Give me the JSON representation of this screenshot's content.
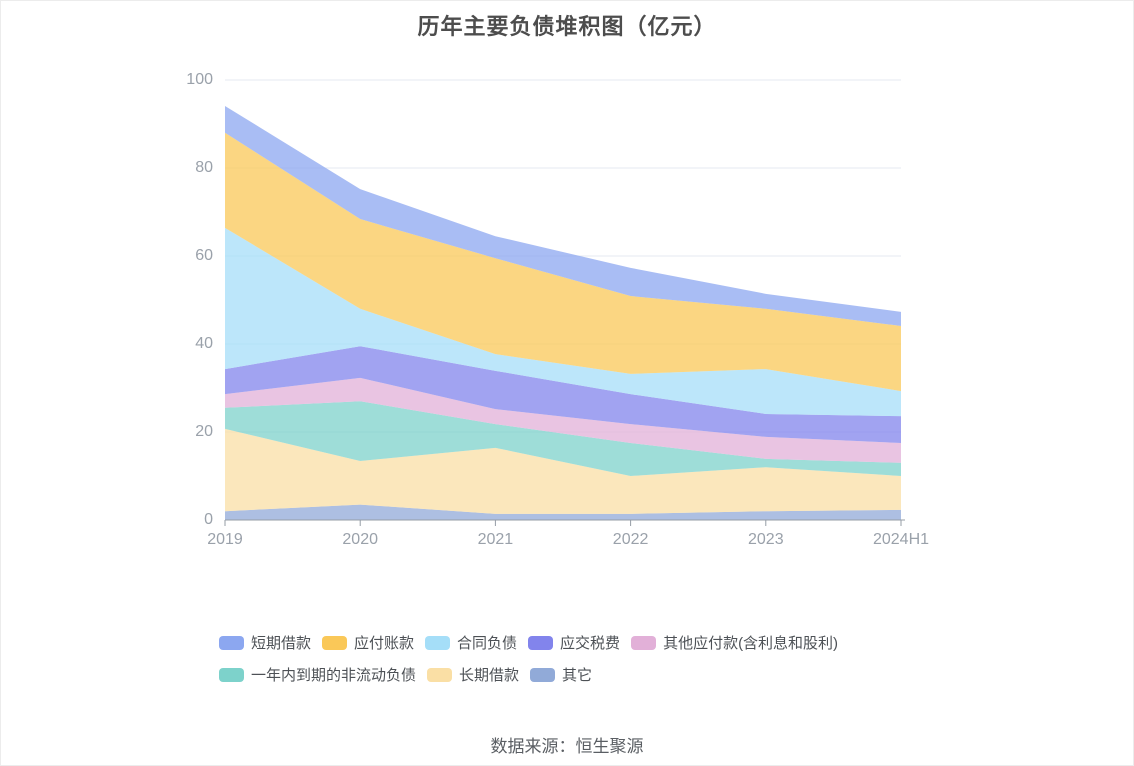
{
  "title": "历年主要负债堆积图（亿元）",
  "source": "数据来源：恒生聚源",
  "palette": {
    "grid_line": "#e4eaf2",
    "axis_line": "#959ca6",
    "axis_label": "#9aa1aa",
    "title_color": "#4d4d4d",
    "legend_text": "#4d5156",
    "background": "#ffffff"
  },
  "chart_data": {
    "type": "area",
    "stacked": true,
    "title": "历年主要负债堆积图（亿元）",
    "categories": [
      "2019",
      "2020",
      "2021",
      "2022",
      "2023",
      "2024H1"
    ],
    "ylim": [
      0,
      100
    ],
    "yticks": [
      0,
      20,
      40,
      60,
      80,
      100
    ],
    "grid": true,
    "legend_position": "bottom",
    "area_opacity": 0.75,
    "series": [
      {
        "key": "others",
        "name": "其它",
        "color": "#91aad8",
        "values": [
          2.0,
          3.5,
          1.4,
          1.4,
          2.0,
          2.3
        ]
      },
      {
        "key": "long-term-borrowings",
        "name": "长期借款",
        "color": "#fadfa5",
        "values": [
          18.7,
          9.9,
          15.0,
          8.6,
          10.0,
          7.7
        ]
      },
      {
        "key": "non-current-liabilities-due-within-one-year",
        "name": "一年内到期的非流动负债",
        "color": "#7dd2cb",
        "values": [
          4.8,
          13.6,
          5.4,
          7.5,
          1.9,
          3.0
        ]
      },
      {
        "key": "other-payables",
        "name": "其他应付款(含利息和股利)",
        "color": "#e2b0d8",
        "values": [
          3.1,
          5.3,
          3.4,
          4.3,
          5.0,
          4.5
        ]
      },
      {
        "key": "taxes-payable",
        "name": "应交税费",
        "color": "#8284ec",
        "values": [
          5.7,
          7.2,
          8.7,
          6.8,
          5.2,
          6.1
        ]
      },
      {
        "key": "contract-liabilities",
        "name": "合同负债",
        "color": "#a5def8",
        "values": [
          32.1,
          8.5,
          3.8,
          4.6,
          10.2,
          5.7
        ]
      },
      {
        "key": "accounts-payable",
        "name": "应付账款",
        "color": "#fac858",
        "values": [
          21.6,
          20.4,
          21.8,
          17.7,
          13.7,
          14.8
        ]
      },
      {
        "key": "short-term-borrowings",
        "name": "短期借款",
        "color": "#8ca7f0",
        "values": [
          6.1,
          6.8,
          5.0,
          6.4,
          3.4,
          3.2
        ]
      }
    ],
    "legend_rows": [
      [
        "short-term-borrowings",
        "accounts-payable",
        "contract-liabilities",
        "taxes-payable",
        "other-payables"
      ],
      [
        "non-current-liabilities-due-within-one-year",
        "long-term-borrowings",
        "others"
      ]
    ],
    "totals_by_year": [
      94.1,
      75.2,
      64.5,
      57.3,
      51.4,
      47.3
    ]
  }
}
